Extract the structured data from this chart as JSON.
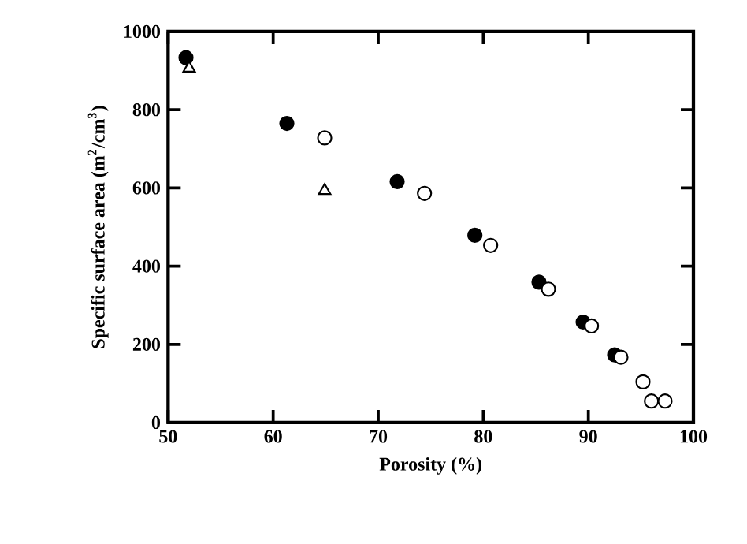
{
  "chart_data": {
    "type": "scatter",
    "xlabel": "Porosity (%)",
    "ylabel": "Specific surface area (m$^{2}$/cm$^{3}$)",
    "xlim": [
      50,
      100
    ],
    "ylim": [
      0,
      1000
    ],
    "xticks": [
      50,
      60,
      70,
      80,
      90,
      100
    ],
    "yticks": [
      0,
      200,
      400,
      600,
      800,
      1000
    ],
    "grid": false,
    "series": [
      {
        "color": "#000000",
        "marker": "circle",
        "x": [
          51.7,
          61.3,
          71.8,
          79.2,
          85.3,
          89.5,
          92.5
        ],
        "values": [
          933,
          765,
          616,
          479,
          359,
          257,
          173
        ]
      },
      {
        "color": "#ffffff",
        "marker": "circle",
        "x": [
          64.9,
          74.4,
          80.7,
          86.2,
          90.3,
          93.1,
          95.2,
          96.0,
          97.3
        ],
        "values": [
          728,
          586,
          453,
          341,
          247,
          167,
          104,
          55,
          55
        ]
      },
      {
        "color": "#ffffff",
        "marker": "triangle",
        "x": [
          52.0,
          64.9
        ],
        "values": [
          906,
          593
        ]
      }
    ]
  }
}
